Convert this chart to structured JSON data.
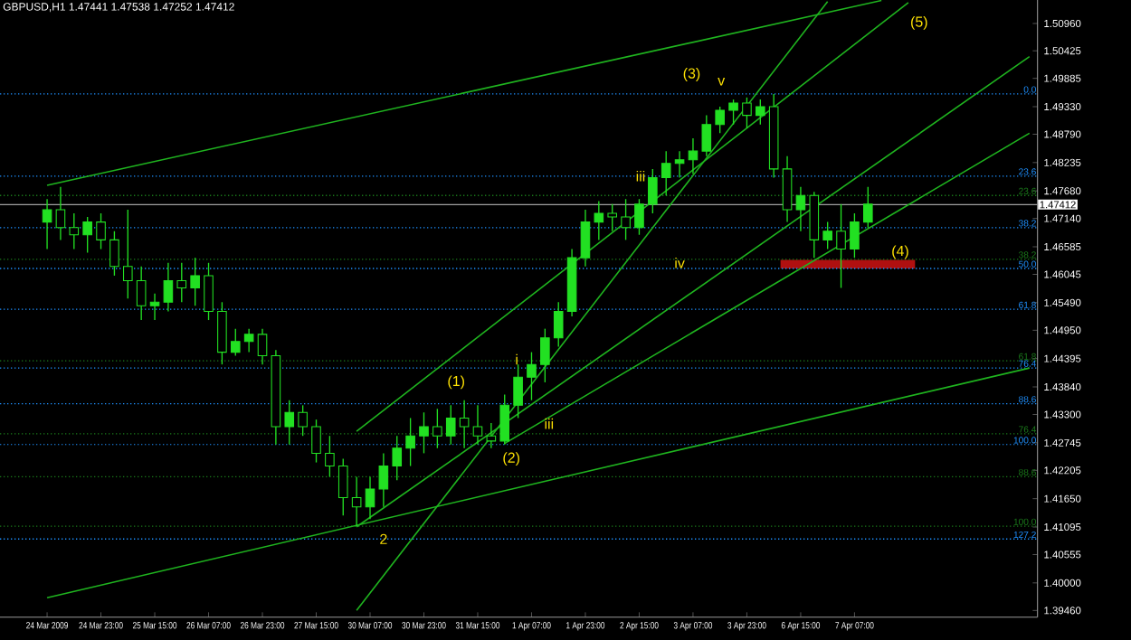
{
  "chart_data": {
    "type": "candlestick",
    "title": "GBPUSD,H1  1.47441 1.47538 1.47252 1.47412",
    "color": "#22e022",
    "categories": [
      "24 Mar 2009",
      null,
      null,
      null,
      "24 Mar 23:00",
      null,
      null,
      null,
      "25 Mar 15:00",
      null,
      null,
      null,
      "26 Mar 07:00",
      null,
      null,
      null,
      "26 Mar 23:00",
      null,
      null,
      null,
      "27 Mar 15:00",
      null,
      null,
      null,
      "30 Mar 07:00",
      null,
      null,
      null,
      "30 Mar 23:00",
      null,
      null,
      null,
      "31 Mar 15:00",
      null,
      null,
      null,
      "1 Apr 07:00",
      null,
      null,
      null,
      "1 Apr 23:00",
      null,
      null,
      null,
      "2 Apr 15:00",
      null,
      null,
      null,
      "3 Apr 07:00",
      null,
      null,
      null,
      "3 Apr 23:00",
      null,
      null,
      null,
      "6 Apr 15:00",
      null,
      null,
      null,
      "7 Apr 07:00",
      null,
      null,
      null,
      null,
      null,
      null,
      null,
      null,
      null,
      null,
      null,
      null,
      null
    ],
    "ohlc": [
      [
        1.4707,
        1.4752,
        1.4654,
        1.4731
      ],
      [
        1.4731,
        1.4776,
        1.4672,
        1.4696
      ],
      [
        1.4696,
        1.4724,
        1.4654,
        1.4682
      ],
      [
        1.4682,
        1.4717,
        1.4647,
        1.4707
      ],
      [
        1.4707,
        1.4724,
        1.4654,
        1.4672
      ],
      [
        1.4672,
        1.4689,
        1.4602,
        1.462
      ],
      [
        1.462,
        1.4731,
        1.4557,
        1.4592
      ],
      [
        1.4592,
        1.462,
        1.4515,
        1.4543
      ],
      [
        1.4543,
        1.4567,
        1.4515,
        1.455
      ],
      [
        1.455,
        1.4627,
        1.4532,
        1.4592
      ],
      [
        1.4592,
        1.4627,
        1.455,
        1.4578
      ],
      [
        1.4578,
        1.4637,
        1.4543,
        1.4602
      ],
      [
        1.4602,
        1.4627,
        1.4515,
        1.4532
      ],
      [
        1.4532,
        1.455,
        1.4428,
        1.4452
      ],
      [
        1.4452,
        1.4498,
        1.4445,
        1.4473
      ],
      [
        1.4473,
        1.4498,
        1.4452,
        1.4487
      ],
      [
        1.4487,
        1.4498,
        1.4428,
        1.4445
      ],
      [
        1.4445,
        1.4456,
        1.4271,
        1.4306
      ],
      [
        1.4306,
        1.4358,
        1.4271,
        1.4334
      ],
      [
        1.4334,
        1.4348,
        1.4288,
        1.4306
      ],
      [
        1.4306,
        1.432,
        1.4236,
        1.4254
      ],
      [
        1.4254,
        1.4288,
        1.4208,
        1.4229
      ],
      [
        1.4229,
        1.4243,
        1.4132,
        1.4167
      ],
      [
        1.4167,
        1.4208,
        1.4111,
        1.4149
      ],
      [
        1.4149,
        1.4208,
        1.4125,
        1.4184
      ],
      [
        1.4184,
        1.4254,
        1.4149,
        1.4229
      ],
      [
        1.4229,
        1.4288,
        1.4201,
        1.4264
      ],
      [
        1.4264,
        1.4323,
        1.4229,
        1.4288
      ],
      [
        1.4288,
        1.4334,
        1.4254,
        1.4306
      ],
      [
        1.4306,
        1.4341,
        1.4264,
        1.4288
      ],
      [
        1.4288,
        1.4348,
        1.4271,
        1.4323
      ],
      [
        1.4323,
        1.4358,
        1.4264,
        1.4306
      ],
      [
        1.4306,
        1.4348,
        1.4271,
        1.4288
      ],
      [
        1.4288,
        1.4313,
        1.4264,
        1.4278
      ],
      [
        1.4278,
        1.4369,
        1.4271,
        1.4348
      ],
      [
        1.4348,
        1.4428,
        1.4323,
        1.4403
      ],
      [
        1.4403,
        1.4452,
        1.4358,
        1.4428
      ],
      [
        1.4428,
        1.4498,
        1.4393,
        1.448
      ],
      [
        1.448,
        1.455,
        1.4463,
        1.4532
      ],
      [
        1.4532,
        1.4654,
        1.4522,
        1.4637
      ],
      [
        1.4637,
        1.4731,
        1.462,
        1.4707
      ],
      [
        1.4707,
        1.4748,
        1.4672,
        1.4724
      ],
      [
        1.4724,
        1.4742,
        1.4689,
        1.4717
      ],
      [
        1.4717,
        1.4752,
        1.4672,
        1.4696
      ],
      [
        1.4696,
        1.4752,
        1.4682,
        1.4742
      ],
      [
        1.4742,
        1.4811,
        1.4724,
        1.4794
      ],
      [
        1.4794,
        1.4846,
        1.4759,
        1.4822
      ],
      [
        1.4822,
        1.4846,
        1.4794,
        1.4829
      ],
      [
        1.4829,
        1.4871,
        1.4801,
        1.4846
      ],
      [
        1.4846,
        1.4916,
        1.4836,
        1.4898
      ],
      [
        1.4898,
        1.4933,
        1.4881,
        1.4926
      ],
      [
        1.4926,
        1.4947,
        1.4898,
        1.494
      ],
      [
        1.494,
        1.4951,
        1.4891,
        1.4916
      ],
      [
        1.4916,
        1.4947,
        1.4898,
        1.4933
      ],
      [
        1.4933,
        1.4958,
        1.4794,
        1.4811
      ],
      [
        1.4811,
        1.4836,
        1.4707,
        1.4731
      ],
      [
        1.4731,
        1.4776,
        1.4689,
        1.4759
      ],
      [
        1.4759,
        1.4766,
        1.4637,
        1.4672
      ],
      [
        1.4672,
        1.4707,
        1.4654,
        1.4689
      ],
      [
        1.4689,
        1.4742,
        1.4578,
        1.4654
      ],
      [
        1.4654,
        1.4724,
        1.4637,
        1.4707
      ],
      [
        1.4707,
        1.4776,
        1.4696,
        1.4742
      ],
      null,
      null,
      null,
      null,
      null,
      null,
      null,
      null,
      null,
      null,
      null,
      null
    ],
    "series": [
      {
        "type": "line",
        "color": "#1fb41f",
        "values": [
          1.4779,
          null,
          null,
          null,
          null,
          null,
          null,
          null,
          null,
          null,
          null,
          null,
          null,
          null,
          null,
          null,
          null,
          null,
          null,
          null,
          null,
          null,
          null,
          null,
          null,
          null,
          null,
          null,
          null,
          null,
          null,
          null,
          null,
          null,
          null,
          null,
          null,
          null,
          null,
          null,
          null,
          null,
          null,
          null,
          null,
          null,
          null,
          null,
          null,
          null,
          null,
          null,
          null,
          null,
          null,
          null,
          null,
          null,
          null,
          null,
          null,
          null,
          1.5141,
          null,
          null,
          null,
          null,
          null,
          null,
          null,
          null,
          null,
          null,
          null
        ]
      },
      {
        "type": "line",
        "color": "#1fb41f",
        "values": [
          1.3971,
          null,
          null,
          null,
          null,
          null,
          null,
          null,
          null,
          null,
          null,
          null,
          null,
          null,
          null,
          null,
          null,
          null,
          null,
          null,
          null,
          null,
          null,
          null,
          null,
          null,
          null,
          null,
          null,
          null,
          null,
          null,
          null,
          null,
          null,
          null,
          null,
          null,
          null,
          null,
          null,
          null,
          null,
          null,
          null,
          null,
          null,
          null,
          null,
          null,
          null,
          null,
          null,
          null,
          null,
          null,
          null,
          null,
          null,
          null,
          null,
          null,
          null,
          null,
          null,
          null,
          null,
          null,
          null,
          null,
          null,
          null,
          null,
          1.4421
        ]
      },
      {
        "type": "line",
        "color": "#1fb41f",
        "values": [
          null,
          null,
          null,
          null,
          null,
          null,
          null,
          null,
          null,
          null,
          null,
          null,
          null,
          null,
          null,
          null,
          null,
          null,
          null,
          null,
          null,
          null,
          null,
          1.3946,
          null,
          null,
          null,
          null,
          null,
          null,
          null,
          null,
          null,
          null,
          null,
          null,
          null,
          null,
          null,
          null,
          null,
          null,
          null,
          null,
          null,
          null,
          null,
          null,
          null,
          null,
          null,
          null,
          null,
          null,
          null,
          null,
          null,
          null,
          1.5139,
          null,
          null,
          null,
          null,
          null,
          null,
          null,
          null,
          null,
          null,
          null,
          null,
          null,
          null,
          null
        ]
      },
      {
        "type": "line",
        "color": "#1fb41f",
        "values": [
          null,
          null,
          null,
          null,
          null,
          null,
          null,
          null,
          null,
          null,
          null,
          null,
          null,
          null,
          null,
          null,
          null,
          null,
          null,
          null,
          null,
          null,
          null,
          1.4297,
          null,
          null,
          null,
          null,
          null,
          null,
          null,
          null,
          null,
          null,
          null,
          null,
          null,
          null,
          null,
          null,
          null,
          null,
          null,
          null,
          null,
          null,
          null,
          null,
          null,
          null,
          null,
          null,
          null,
          null,
          null,
          null,
          null,
          null,
          null,
          null,
          null,
          null,
          null,
          null,
          1.5137,
          null,
          null,
          null,
          null,
          null,
          null,
          null,
          null,
          null
        ]
      },
      {
        "type": "line",
        "color": "#1fb41f",
        "values": [
          null,
          null,
          null,
          null,
          null,
          null,
          null,
          null,
          null,
          null,
          null,
          null,
          null,
          null,
          null,
          null,
          null,
          null,
          null,
          null,
          null,
          null,
          null,
          1.411,
          null,
          null,
          null,
          null,
          null,
          null,
          null,
          null,
          null,
          null,
          null,
          null,
          null,
          null,
          null,
          null,
          null,
          null,
          null,
          null,
          null,
          null,
          null,
          null,
          null,
          null,
          null,
          null,
          null,
          null,
          null,
          null,
          null,
          null,
          null,
          null,
          null,
          null,
          null,
          null,
          null,
          null,
          null,
          null,
          null,
          null,
          null,
          null,
          null,
          1.5031
        ]
      },
      {
        "type": "line",
        "color": "#1fb41f",
        "values": [
          null,
          null,
          null,
          null,
          null,
          null,
          null,
          null,
          null,
          null,
          null,
          null,
          null,
          null,
          null,
          null,
          null,
          null,
          null,
          null,
          null,
          null,
          null,
          null,
          null,
          null,
          null,
          null,
          null,
          null,
          null,
          null,
          null,
          null,
          1.4273,
          null,
          null,
          null,
          null,
          null,
          null,
          null,
          null,
          null,
          null,
          null,
          null,
          null,
          null,
          null,
          null,
          null,
          null,
          null,
          null,
          null,
          null,
          null,
          null,
          null,
          null,
          null,
          null,
          null,
          null,
          null,
          null,
          null,
          null,
          null,
          null,
          null,
          null,
          1.4881
        ]
      }
    ],
    "ylim": [
      1.3933,
      1.5142
    ],
    "yticks": [
      {
        "value": 1.5096,
        "label": "1.50960"
      },
      {
        "value": 1.50425,
        "label": "1.50425"
      },
      {
        "value": 1.49885,
        "label": "1.49885"
      },
      {
        "value": 1.4933,
        "label": "1.49330"
      },
      {
        "value": 1.4879,
        "label": "1.48790"
      },
      {
        "value": 1.48235,
        "label": "1.48235"
      },
      {
        "value": 1.4768,
        "label": "1.47680"
      },
      {
        "value": 1.4714,
        "label": "1.47140"
      },
      {
        "value": 1.46585,
        "label": "1.46585"
      },
      {
        "value": 1.46045,
        "label": "1.46045"
      },
      {
        "value": 1.4549,
        "label": "1.45490"
      },
      {
        "value": 1.4495,
        "label": "1.44950"
      },
      {
        "value": 1.44395,
        "label": "1.44395"
      },
      {
        "value": 1.4384,
        "label": "1.43840"
      },
      {
        "value": 1.433,
        "label": "1.43300"
      },
      {
        "value": 1.42745,
        "label": "1.42745"
      },
      {
        "value": 1.42205,
        "label": "1.42205"
      },
      {
        "value": 1.4165,
        "label": "1.41650"
      },
      {
        "value": 1.41095,
        "label": "1.41095"
      },
      {
        "value": 1.40555,
        "label": "1.40555"
      },
      {
        "value": 1.4,
        "label": "1.40000"
      },
      {
        "value": 1.3946,
        "label": "1.39460"
      }
    ],
    "ref_lines": [
      {
        "axis": "y",
        "value": 1.47412,
        "label": "1.47412",
        "color": "#a0a0a0",
        "line_style": "solid"
      },
      {
        "axis": "y",
        "value": 1.4958,
        "color": "#1e90ff",
        "line_style": "dotted"
      },
      {
        "axis": "y",
        "value": 1.4797,
        "color": "#1e90ff",
        "line_style": "dotted"
      },
      {
        "axis": "y",
        "value": 1.4696,
        "color": "#1e90ff",
        "line_style": "dotted"
      },
      {
        "axis": "y",
        "value": 1.4616,
        "color": "#1e90ff",
        "line_style": "dotted"
      },
      {
        "axis": "y",
        "value": 1.4536,
        "color": "#1e90ff",
        "line_style": "dotted"
      },
      {
        "axis": "y",
        "value": 1.4421,
        "color": "#1e90ff",
        "line_style": "dotted"
      },
      {
        "axis": "y",
        "value": 1.4351,
        "color": "#1e90ff",
        "line_style": "dotted"
      },
      {
        "axis": "y",
        "value": 1.4271,
        "color": "#1e90ff",
        "line_style": "dotted"
      },
      {
        "axis": "y",
        "value": 1.4086,
        "color": "#1e90ff",
        "line_style": "dotted"
      },
      {
        "axis": "y",
        "value": 1.4759,
        "color": "#1a7a1a",
        "line_style": "dotted"
      },
      {
        "axis": "y",
        "value": 1.4634,
        "color": "#1a7a1a",
        "line_style": "dotted"
      },
      {
        "axis": "y",
        "value": 1.4435,
        "color": "#1a7a1a",
        "line_style": "dotted"
      },
      {
        "axis": "y",
        "value": 1.4292,
        "color": "#1a7a1a",
        "line_style": "dotted"
      },
      {
        "axis": "y",
        "value": 1.4208,
        "color": "#1a7a1a",
        "line_style": "dotted"
      },
      {
        "axis": "y",
        "value": 1.4111,
        "color": "#1a7a1a",
        "line_style": "dotted"
      }
    ],
    "bands": [
      {
        "axis": "y",
        "from": 1.4616,
        "to": 1.4633,
        "color": "#b01010"
      }
    ],
    "annotations": [
      "(1)",
      "(2)",
      "(3)",
      "(4)",
      "(5)",
      "2",
      "i",
      "iii",
      "iii",
      "iv",
      "v",
      {
        "text": "0.0",
        "y": 1.4958
      },
      {
        "text": "23.6",
        "y": 1.4797
      },
      {
        "text": "38.2",
        "y": 1.4696
      },
      {
        "text": "50.0",
        "y": 1.4616
      },
      {
        "text": "61.8",
        "y": 1.4536
      },
      {
        "text": "76.4",
        "y": 1.4421
      },
      {
        "text": "88.6",
        "y": 1.4351
      },
      {
        "text": "100.0",
        "y": 1.4271
      },
      {
        "text": "127.2",
        "y": 1.4086
      },
      {
        "text": "23.6",
        "y": 1.4759
      },
      {
        "text": "38.2",
        "y": 1.4634
      },
      {
        "text": "61.8",
        "y": 1.4435
      },
      {
        "text": "76.4",
        "y": 1.4292
      },
      {
        "text": "88.6",
        "y": 1.4208
      },
      {
        "text": "100.0",
        "y": 1.4111
      }
    ]
  }
}
